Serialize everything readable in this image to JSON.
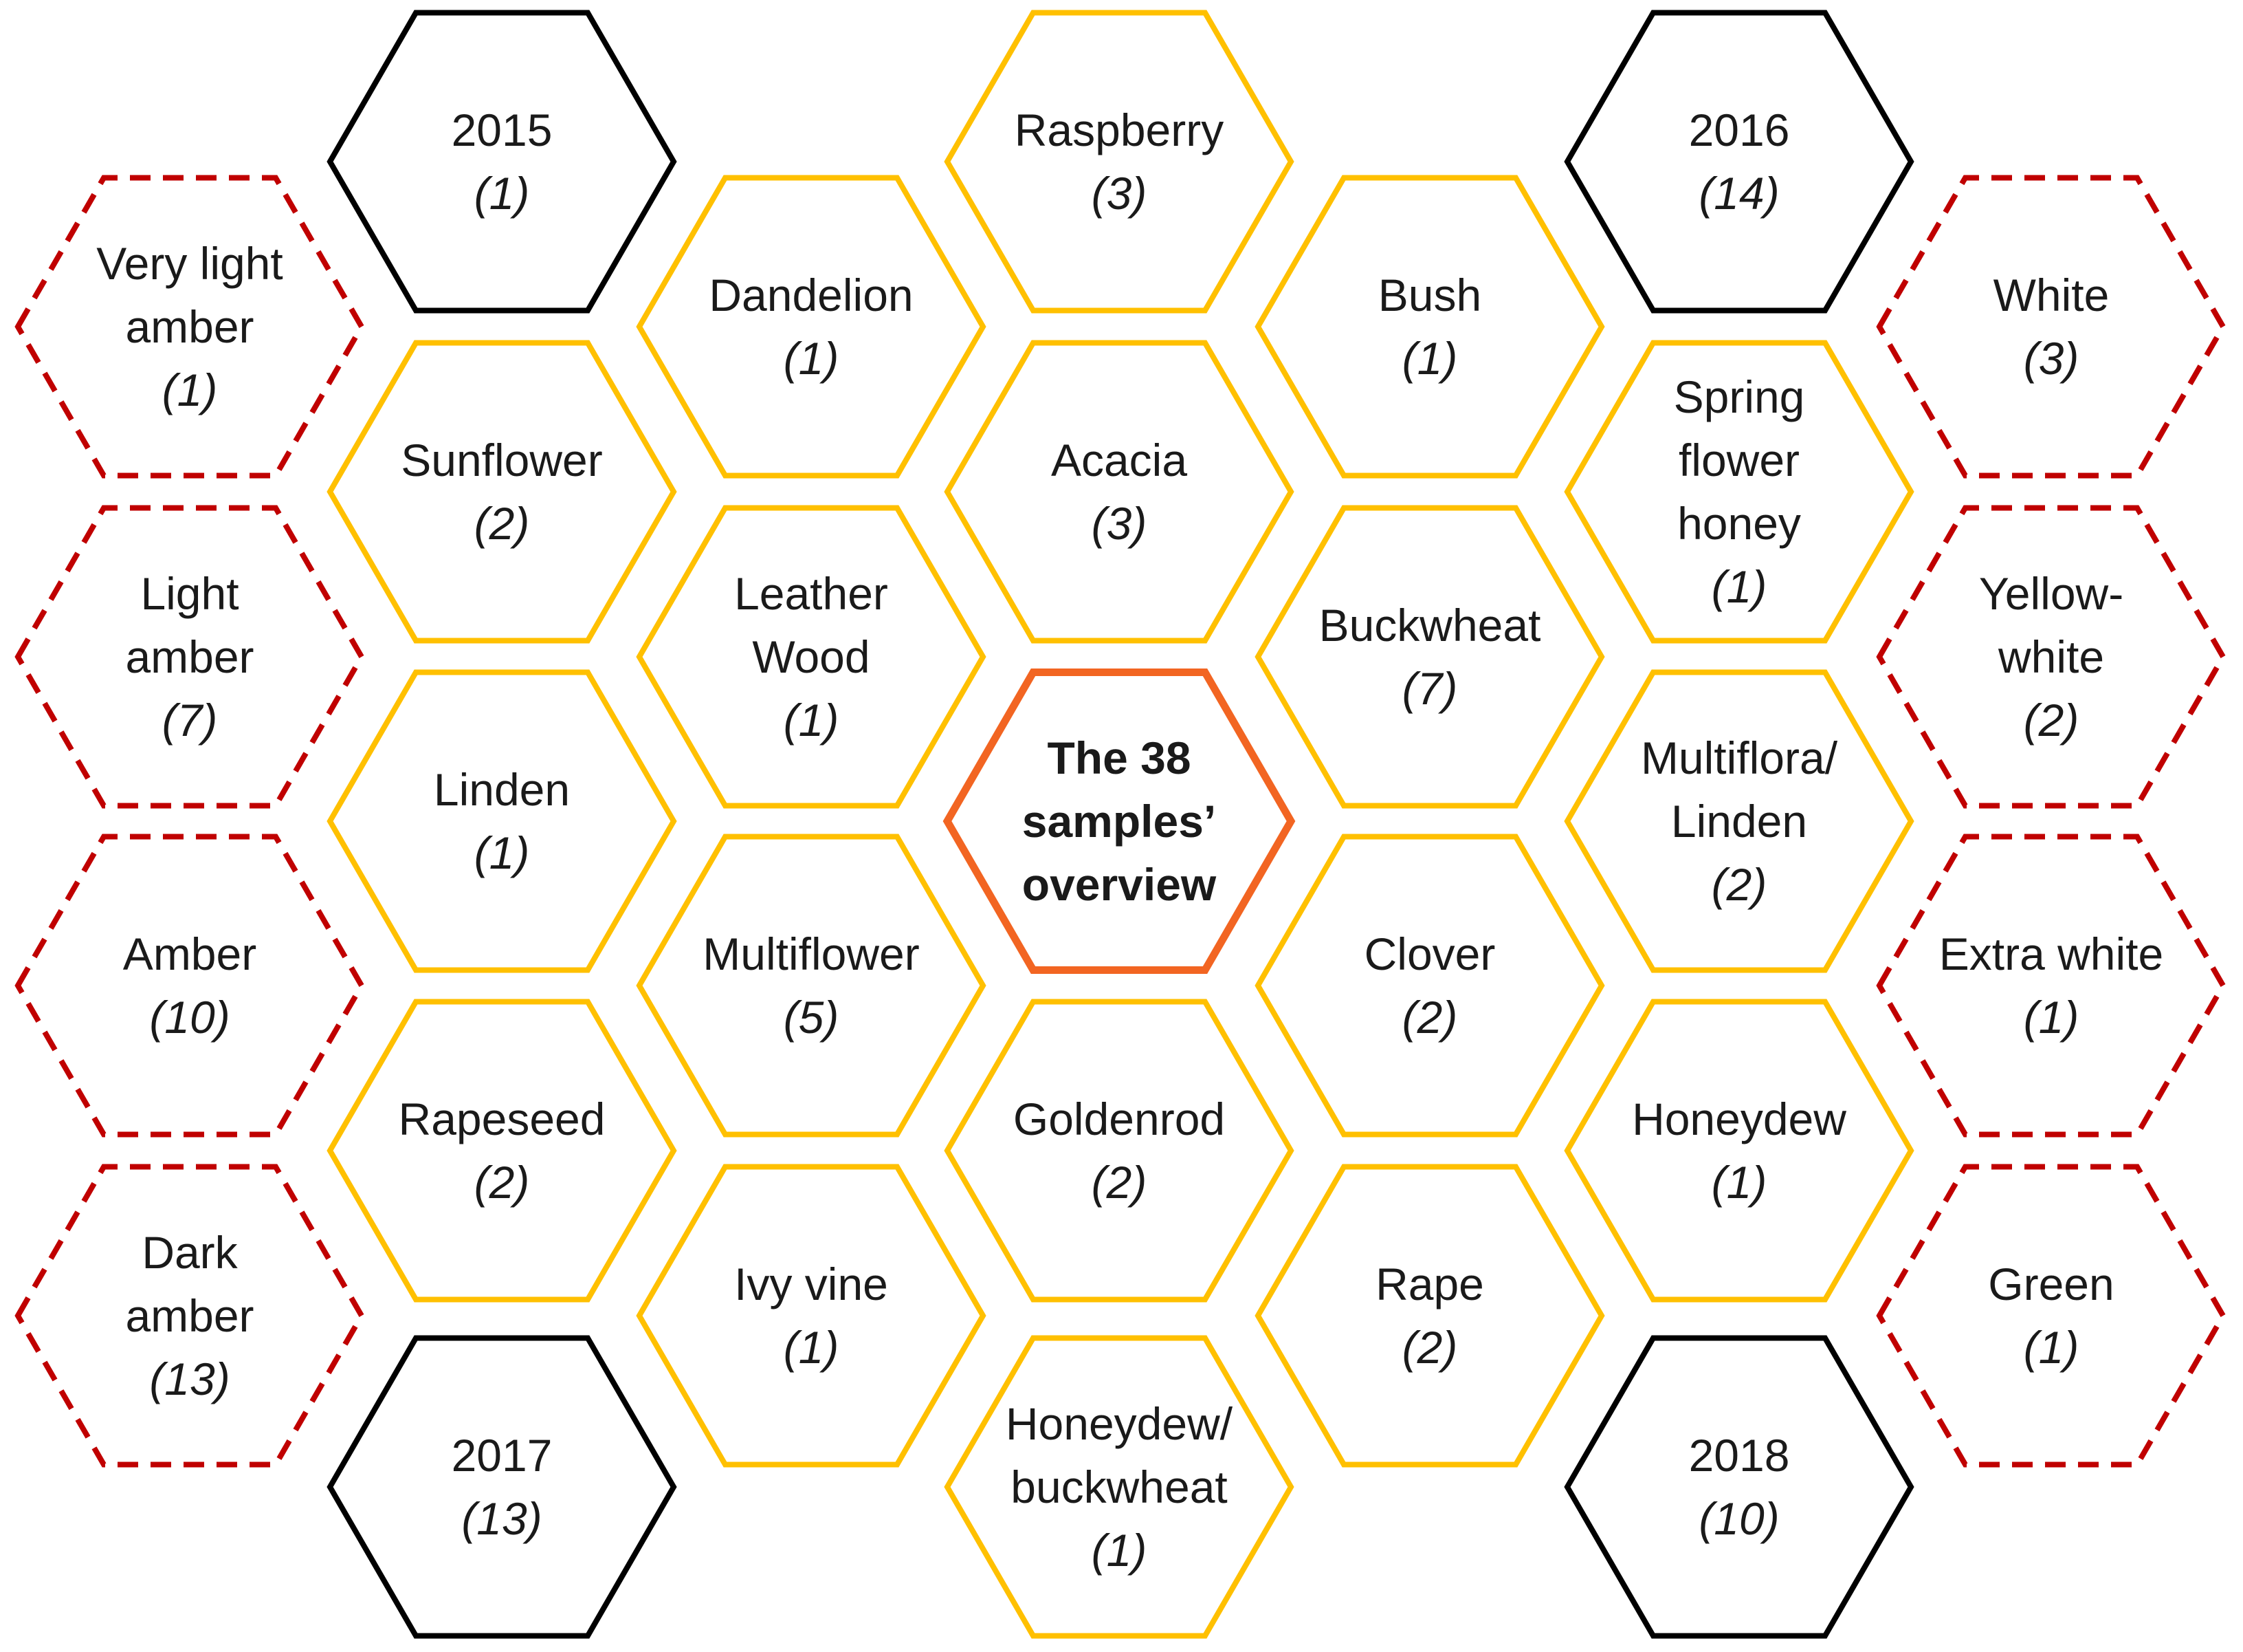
{
  "colors": {
    "flower_stroke": "#FFC000",
    "year_stroke": "#000000",
    "color_class_stroke": "#C00000",
    "center_stroke": "#F26522"
  },
  "center": {
    "lines": [
      "The 38",
      "samples’",
      "overview"
    ]
  },
  "years": [
    {
      "id": "2015",
      "label": [
        "2015"
      ],
      "count": "(1)"
    },
    {
      "id": "2016",
      "label": [
        "2016"
      ],
      "count": "(14)"
    },
    {
      "id": "2017",
      "label": [
        "2017"
      ],
      "count": "(13)"
    },
    {
      "id": "2018",
      "label": [
        "2018"
      ],
      "count": "(10)"
    }
  ],
  "botanical_origin": [
    {
      "id": "raspberry",
      "label": [
        "Raspberry"
      ],
      "count": "(3)"
    },
    {
      "id": "dandelion",
      "label": [
        "Dandelion"
      ],
      "count": "(1)"
    },
    {
      "id": "bush",
      "label": [
        "Bush"
      ],
      "count": "(1)"
    },
    {
      "id": "sunflower",
      "label": [
        "Sunflower"
      ],
      "count": "(2)"
    },
    {
      "id": "acacia",
      "label": [
        "Acacia"
      ],
      "count": "(3)"
    },
    {
      "id": "spring-flower-honey",
      "label": [
        "Spring",
        "flower",
        "honey"
      ],
      "count": "(1)"
    },
    {
      "id": "leather-wood",
      "label": [
        "Leather",
        "Wood"
      ],
      "count": "(1)"
    },
    {
      "id": "buckwheat",
      "label": [
        "Buckwheat"
      ],
      "count": "(7)"
    },
    {
      "id": "linden",
      "label": [
        "Linden"
      ],
      "count": "(1)"
    },
    {
      "id": "multiflora-linden",
      "label": [
        "Multiflora/",
        "Linden"
      ],
      "count": "(2)"
    },
    {
      "id": "multiflower",
      "label": [
        "Multiflower"
      ],
      "count": "(5)"
    },
    {
      "id": "clover",
      "label": [
        "Clover"
      ],
      "count": "(2)"
    },
    {
      "id": "rapeseed",
      "label": [
        "Rapeseed"
      ],
      "count": "(2)"
    },
    {
      "id": "goldenrod",
      "label": [
        "Goldenrod"
      ],
      "count": "(2)"
    },
    {
      "id": "honeydew",
      "label": [
        "Honeydew"
      ],
      "count": "(1)"
    },
    {
      "id": "ivy-vine",
      "label": [
        "Ivy vine"
      ],
      "count": "(1)"
    },
    {
      "id": "rape",
      "label": [
        "Rape"
      ],
      "count": "(2)"
    },
    {
      "id": "honeydew-buckwheat",
      "label": [
        "Honeydew/",
        "buckwheat"
      ],
      "count": "(1)"
    }
  ],
  "color_classes": [
    {
      "id": "very-light-amber",
      "label": [
        "Very light",
        "amber"
      ],
      "count": "(1)"
    },
    {
      "id": "light-amber",
      "label": [
        "Light",
        "amber"
      ],
      "count": "(7)"
    },
    {
      "id": "amber",
      "label": [
        "Amber"
      ],
      "count": "(10)"
    },
    {
      "id": "dark-amber",
      "label": [
        "Dark",
        "amber"
      ],
      "count": "(13)"
    },
    {
      "id": "white",
      "label": [
        "White"
      ],
      "count": "(3)"
    },
    {
      "id": "yellow-white",
      "label": [
        "Yellow-",
        "white"
      ],
      "count": "(2)"
    },
    {
      "id": "extra-white",
      "label": [
        "Extra white"
      ],
      "count": "(1)"
    },
    {
      "id": "green",
      "label": [
        "Green"
      ],
      "count": "(1)"
    }
  ]
}
